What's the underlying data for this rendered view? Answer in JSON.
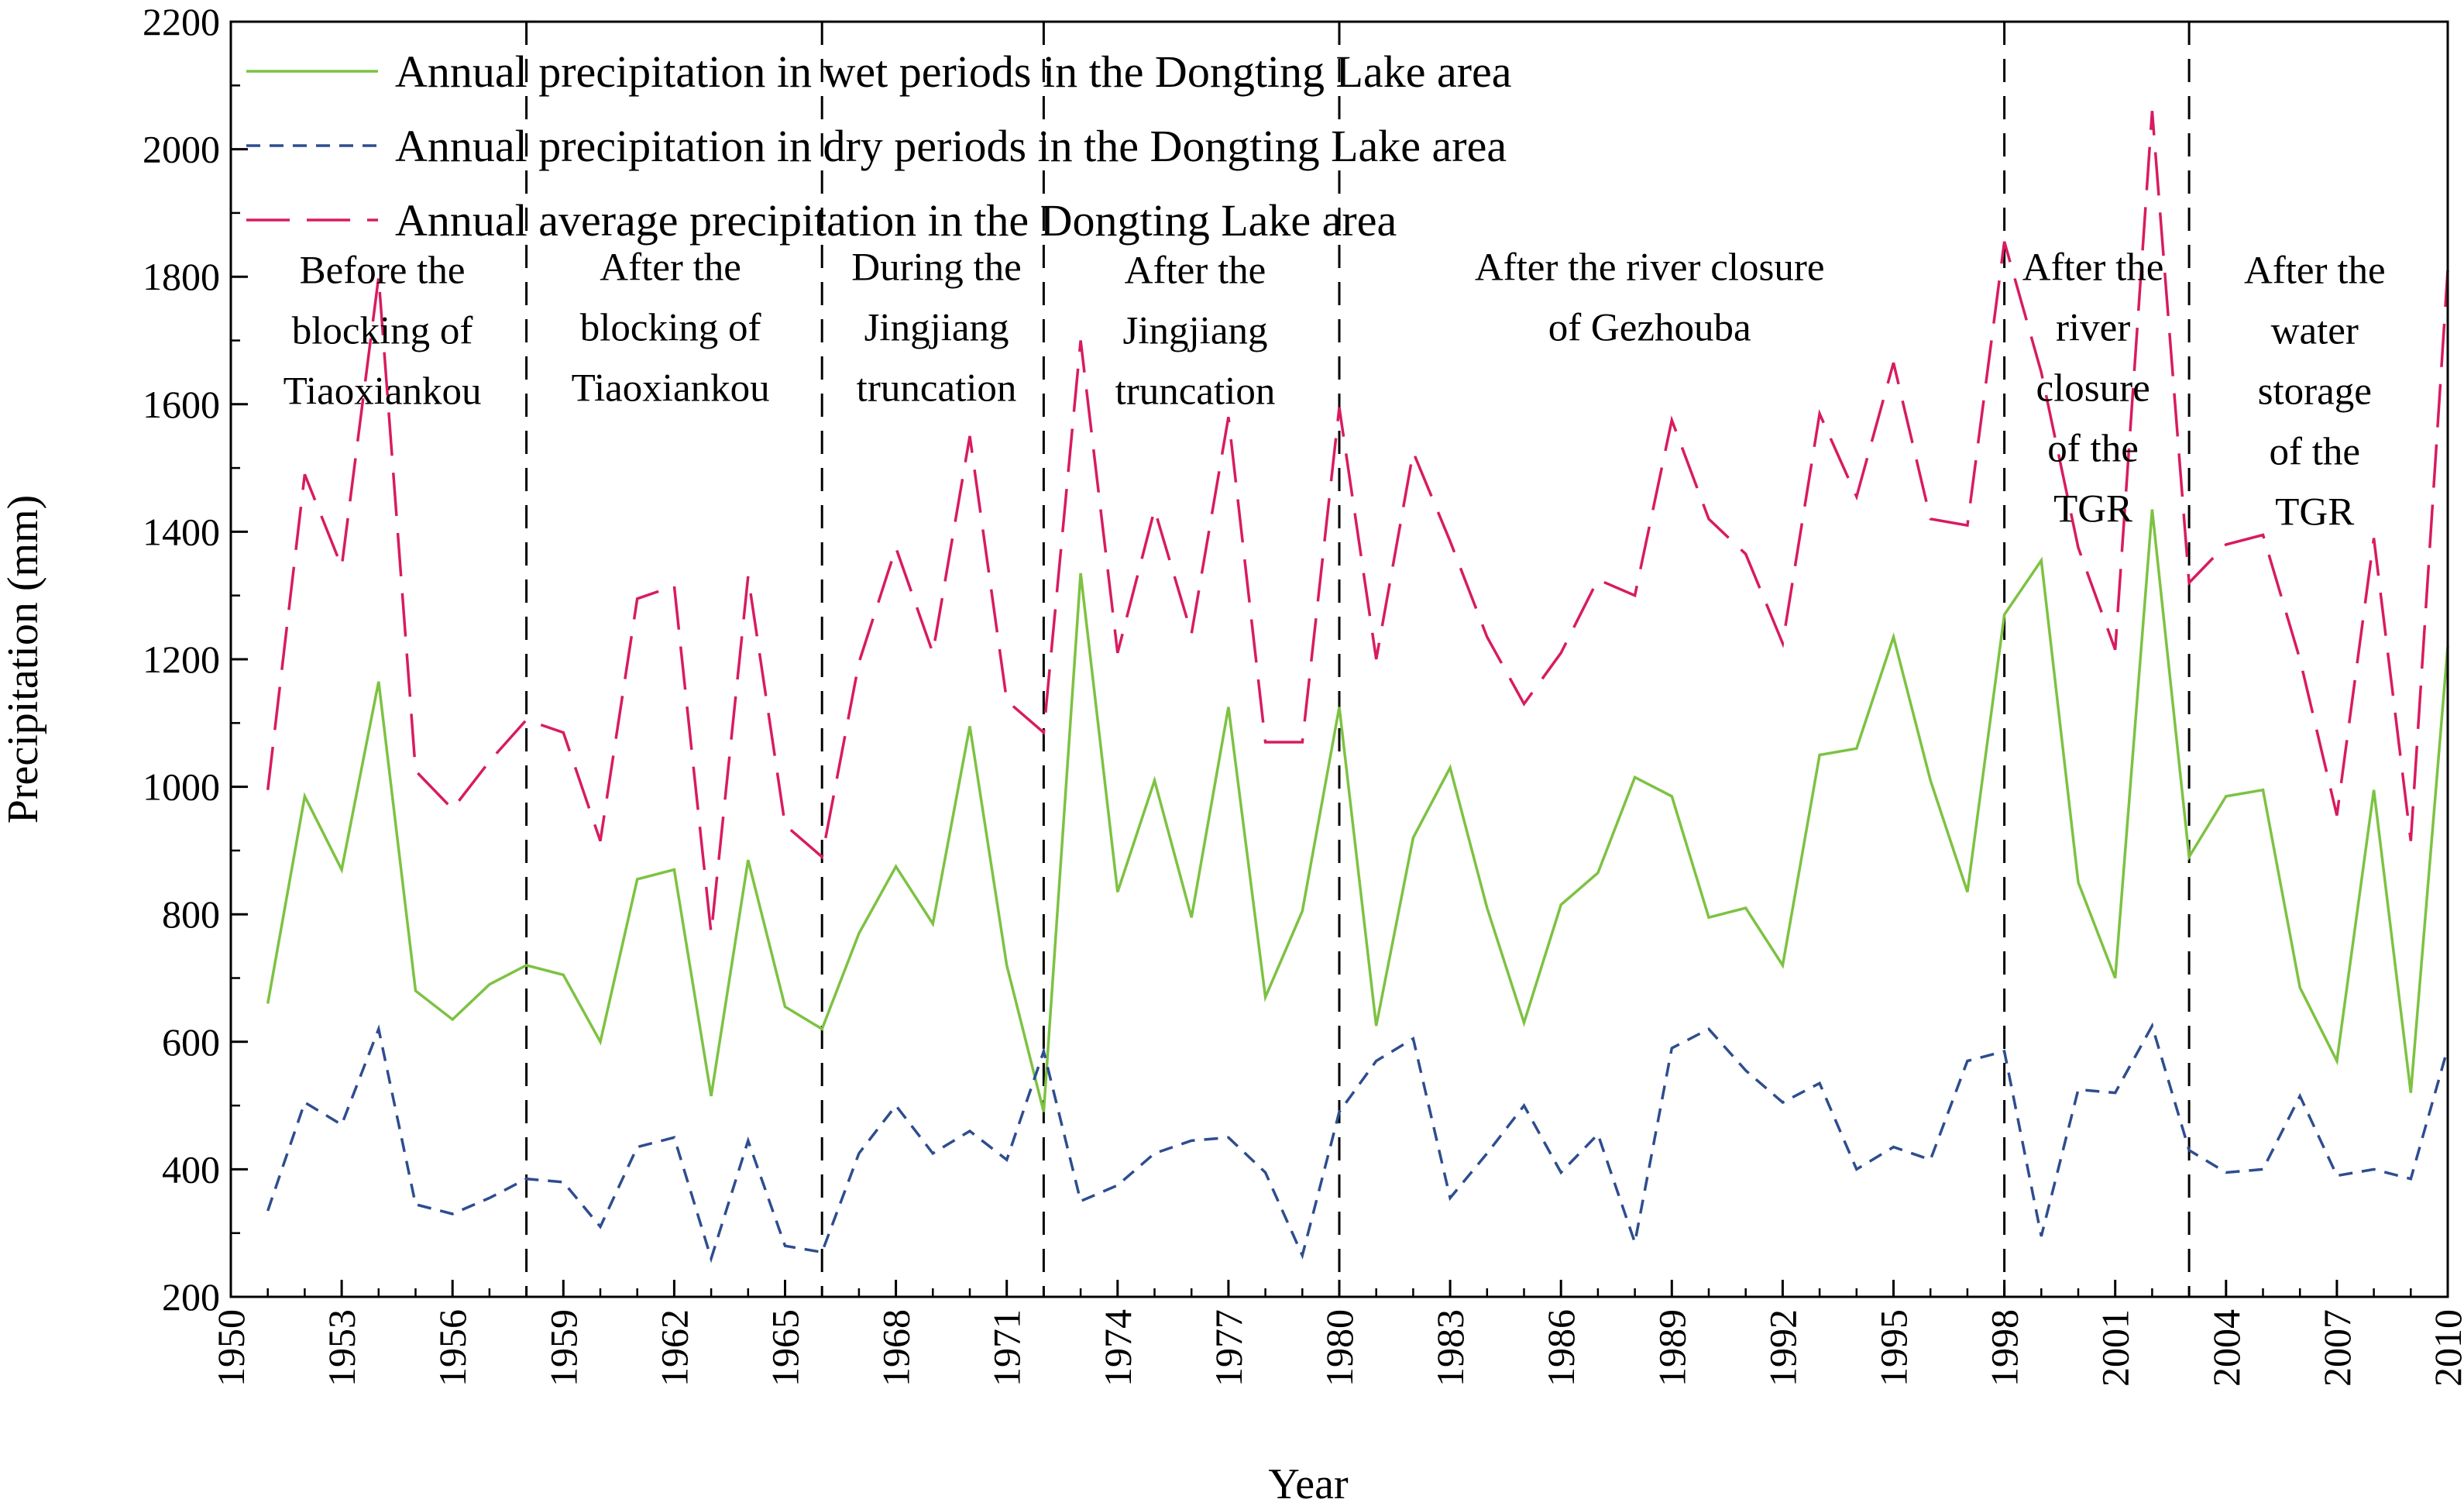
{
  "chart_data": {
    "type": "line",
    "xlabel": "Year",
    "ylabel": "Precipitation (mm)",
    "xlim": [
      1950,
      2010
    ],
    "ylim": [
      200,
      2200
    ],
    "xticks": [
      1950,
      1953,
      1956,
      1959,
      1962,
      1965,
      1968,
      1971,
      1974,
      1977,
      1980,
      1983,
      1986,
      1989,
      1992,
      1995,
      1998,
      2001,
      2004,
      2007,
      2010
    ],
    "yticks": [
      200,
      400,
      600,
      800,
      1000,
      1200,
      1400,
      1600,
      1800,
      2000,
      2200
    ],
    "grid": false,
    "legend_position": "top-left",
    "x": [
      1951,
      1952,
      1953,
      1954,
      1955,
      1956,
      1957,
      1958,
      1959,
      1960,
      1961,
      1962,
      1963,
      1964,
      1965,
      1966,
      1967,
      1968,
      1969,
      1970,
      1971,
      1972,
      1973,
      1974,
      1975,
      1976,
      1977,
      1978,
      1979,
      1980,
      1981,
      1982,
      1983,
      1984,
      1985,
      1986,
      1987,
      1988,
      1989,
      1990,
      1991,
      1992,
      1993,
      1994,
      1995,
      1996,
      1997,
      1998,
      1999,
      2000,
      2001,
      2002,
      2003,
      2004,
      2005,
      2006,
      2007,
      2008,
      2009,
      2010
    ],
    "series": [
      {
        "name": "Annual precipitation in wet periods in the Dongting Lake area",
        "color": "#7dc242",
        "dash": "solid",
        "values": [
          660,
          985,
          870,
          1165,
          680,
          635,
          690,
          720,
          705,
          600,
          855,
          870,
          515,
          885,
          655,
          620,
          770,
          875,
          785,
          1095,
          720,
          490,
          1335,
          835,
          1010,
          795,
          1125,
          670,
          805,
          1125,
          625,
          920,
          1030,
          810,
          630,
          815,
          865,
          1015,
          985,
          795,
          810,
          720,
          1050,
          1060,
          1235,
          1010,
          835,
          1270,
          1355,
          850,
          700,
          1435,
          890,
          985,
          995,
          685,
          570,
          995,
          520,
          1220
        ]
      },
      {
        "name": "Annual precipitation in dry periods in the Dongting Lake area",
        "color": "#2e4d8f",
        "dash": "short",
        "values": [
          335,
          505,
          470,
          620,
          345,
          330,
          355,
          385,
          380,
          310,
          435,
          450,
          260,
          445,
          280,
          270,
          425,
          500,
          425,
          460,
          415,
          585,
          350,
          375,
          425,
          445,
          450,
          395,
          265,
          490,
          570,
          605,
          355,
          425,
          500,
          395,
          455,
          285,
          590,
          620,
          555,
          505,
          535,
          400,
          435,
          415,
          570,
          585,
          295,
          525,
          520,
          625,
          430,
          395,
          400,
          515,
          390,
          400,
          385,
          590
        ]
      },
      {
        "name": "Annual average precipitation in the Dongting Lake area",
        "color": "#d81b60",
        "dash": "long",
        "values": [
          995,
          1490,
          1345,
          1800,
          1025,
          965,
          1040,
          1105,
          1085,
          915,
          1295,
          1315,
          770,
          1330,
          940,
          890,
          1195,
          1375,
          1210,
          1550,
          1135,
          1085,
          1700,
          1210,
          1435,
          1240,
          1580,
          1070,
          1070,
          1595,
          1200,
          1525,
          1385,
          1235,
          1130,
          1210,
          1325,
          1300,
          1575,
          1420,
          1365,
          1225,
          1585,
          1455,
          1665,
          1420,
          1410,
          1855,
          1650,
          1375,
          1215,
          2060,
          1320,
          1380,
          1395,
          1200,
          955,
          1390,
          915,
          1810
        ]
      }
    ],
    "period_boundaries": [
      1958,
      1966,
      1972,
      1980,
      1998,
      2003
    ],
    "periods": [
      {
        "lines": [
          "Before the",
          "blocking of",
          "Tiaoxiankou"
        ],
        "x": 1954.1,
        "y_top": 1790
      },
      {
        "lines": [
          "After the",
          "blocking of",
          "Tiaoxiankou"
        ],
        "x": 1961.9,
        "y_top": 1795
      },
      {
        "lines": [
          "During the",
          "Jingjiang",
          "truncation"
        ],
        "x": 1969.1,
        "y_top": 1795
      },
      {
        "lines": [
          "After the",
          "Jingjiang",
          "truncation"
        ],
        "x": 1976.1,
        "y_top": 1790
      },
      {
        "lines": [
          "After the river closure",
          "of Gezhouba"
        ],
        "x": 1988.4,
        "y_top": 1795
      },
      {
        "lines": [
          "After the",
          "river",
          "closure",
          "of the",
          "TGR"
        ],
        "x": 2000.4,
        "y_top": 1795
      },
      {
        "lines": [
          "After the",
          "water",
          "storage",
          "of the",
          "TGR"
        ],
        "x": 2006.4,
        "y_top": 1790
      }
    ]
  }
}
